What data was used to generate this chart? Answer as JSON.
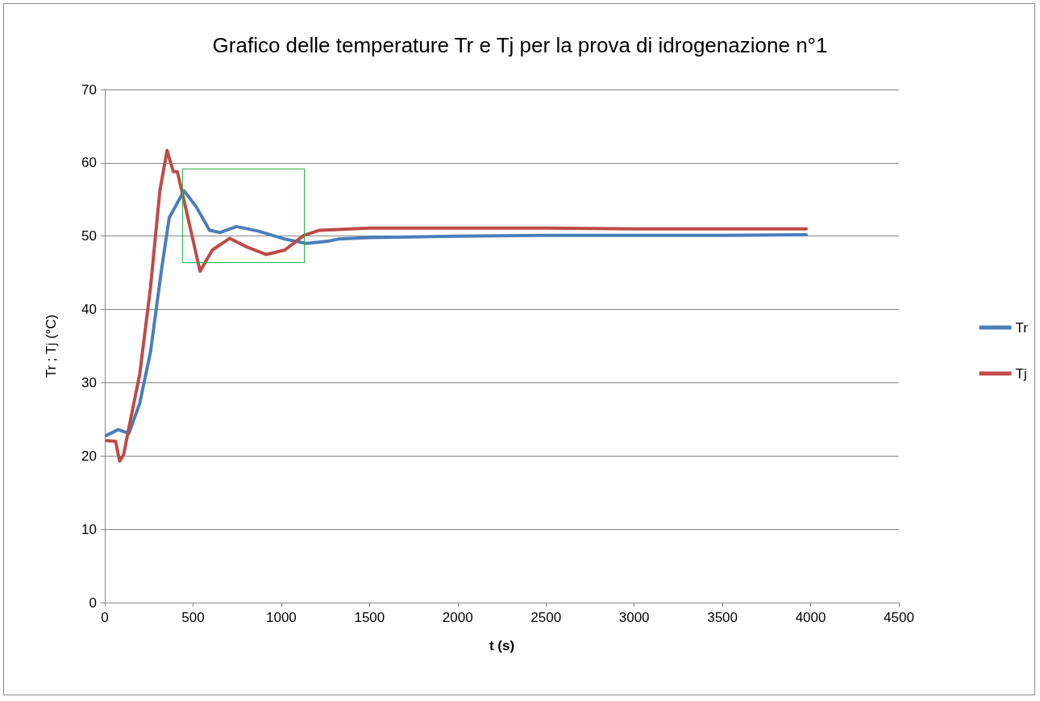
{
  "chart_data": {
    "type": "line",
    "title": "Grafico delle temperature Tr e Tj per la prova di idrogenazione n°1",
    "xlabel": "t (s)",
    "ylabel": "Tr ; Tj (°C)",
    "xlim": [
      0,
      4500
    ],
    "xticks": [
      0,
      500,
      1000,
      1500,
      2000,
      2500,
      3000,
      3500,
      4000,
      4500
    ],
    "ylim": [
      0,
      70
    ],
    "yticks": [
      0,
      10,
      20,
      30,
      40,
      50,
      60,
      70
    ],
    "grid": "y",
    "legend": "right",
    "marker": "none",
    "line_style": "solid",
    "series": [
      {
        "name": "Tr",
        "color": "#4a7ebb",
        "x": [
          8,
          76,
          137,
          198,
          259,
          320,
          365,
          449,
          518,
          594,
          655,
          746,
          868,
          1020,
          1142,
          1264,
          1325,
          1500,
          2000,
          2500,
          3000,
          3500,
          3975
        ],
        "values": [
          22.8,
          23.6,
          23.1,
          27.2,
          34.2,
          45.2,
          52.5,
          56.2,
          54.0,
          50.8,
          50.5,
          51.3,
          50.7,
          49.6,
          49.0,
          49.3,
          49.6,
          49.8,
          50.0,
          50.1,
          50.1,
          50.1,
          50.2
        ]
      },
      {
        "name": "Tj",
        "color": "#be4b48",
        "x": [
          8,
          61,
          84,
          107,
          137,
          198,
          259,
          312,
          353,
          388,
          411,
          457,
          540,
          609,
          708,
          807,
          914,
          1020,
          1127,
          1218,
          1324,
          1500,
          2000,
          2500,
          3000,
          3500,
          3975
        ],
        "values": [
          22.1,
          22.0,
          19.3,
          20.2,
          23.9,
          31.2,
          43.0,
          56.2,
          61.7,
          58.8,
          58.8,
          54.0,
          45.2,
          48.1,
          49.7,
          48.5,
          47.5,
          48.1,
          50.1,
          50.8,
          50.9,
          51.1,
          51.1,
          51.1,
          51.0,
          51.0,
          51.0
        ]
      }
    ]
  }
}
